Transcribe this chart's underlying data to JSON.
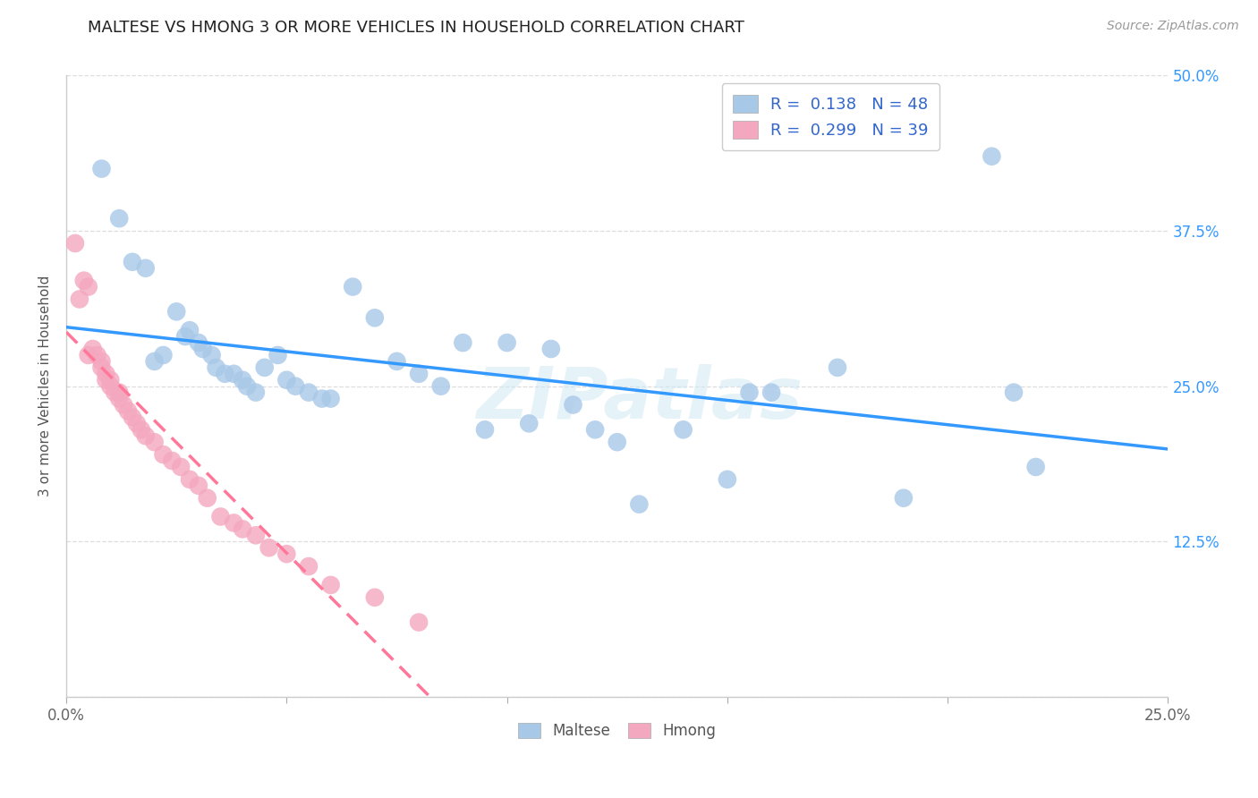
{
  "title": "MALTESE VS HMONG 3 OR MORE VEHICLES IN HOUSEHOLD CORRELATION CHART",
  "source": "Source: ZipAtlas.com",
  "ylabel": "3 or more Vehicles in Household",
  "xlim": [
    0.0,
    0.25
  ],
  "ylim": [
    0.0,
    0.5
  ],
  "xticks": [
    0.0,
    0.05,
    0.1,
    0.15,
    0.2,
    0.25
  ],
  "yticks": [
    0.0,
    0.125,
    0.25,
    0.375,
    0.5
  ],
  "xticklabels": [
    "0.0%",
    "",
    "",
    "",
    "",
    "25.0%"
  ],
  "yticklabels_right": [
    "",
    "12.5%",
    "25.0%",
    "37.5%",
    "50.0%"
  ],
  "maltese_R": 0.138,
  "maltese_N": 48,
  "hmong_R": 0.299,
  "hmong_N": 39,
  "maltese_color": "#a8c8e8",
  "hmong_color": "#f4a8c0",
  "maltese_line_color": "#3399ff",
  "hmong_line_color": "#ff7799",
  "legend_label_color": "#3366cc",
  "watermark": "ZIPatlas",
  "maltese_x": [
    0.008,
    0.012,
    0.015,
    0.018,
    0.02,
    0.022,
    0.025,
    0.027,
    0.028,
    0.03,
    0.031,
    0.033,
    0.034,
    0.036,
    0.038,
    0.04,
    0.041,
    0.043,
    0.045,
    0.048,
    0.05,
    0.052,
    0.055,
    0.058,
    0.06,
    0.065,
    0.07,
    0.075,
    0.08,
    0.085,
    0.09,
    0.095,
    0.1,
    0.105,
    0.11,
    0.115,
    0.12,
    0.125,
    0.13,
    0.14,
    0.15,
    0.155,
    0.16,
    0.175,
    0.19,
    0.21,
    0.215,
    0.22
  ],
  "maltese_y": [
    0.425,
    0.385,
    0.35,
    0.345,
    0.27,
    0.275,
    0.31,
    0.29,
    0.295,
    0.285,
    0.28,
    0.275,
    0.265,
    0.26,
    0.26,
    0.255,
    0.25,
    0.245,
    0.265,
    0.275,
    0.255,
    0.25,
    0.245,
    0.24,
    0.24,
    0.33,
    0.305,
    0.27,
    0.26,
    0.25,
    0.285,
    0.215,
    0.285,
    0.22,
    0.28,
    0.235,
    0.215,
    0.205,
    0.155,
    0.215,
    0.175,
    0.245,
    0.245,
    0.265,
    0.16,
    0.435,
    0.245,
    0.185
  ],
  "hmong_x": [
    0.002,
    0.003,
    0.004,
    0.005,
    0.005,
    0.006,
    0.007,
    0.008,
    0.008,
    0.009,
    0.009,
    0.01,
    0.01,
    0.011,
    0.012,
    0.012,
    0.013,
    0.014,
    0.015,
    0.016,
    0.017,
    0.018,
    0.02,
    0.022,
    0.024,
    0.026,
    0.028,
    0.03,
    0.032,
    0.035,
    0.038,
    0.04,
    0.043,
    0.046,
    0.05,
    0.055,
    0.06,
    0.07,
    0.08
  ],
  "hmong_y": [
    0.365,
    0.32,
    0.335,
    0.33,
    0.275,
    0.28,
    0.275,
    0.27,
    0.265,
    0.26,
    0.255,
    0.255,
    0.25,
    0.245,
    0.245,
    0.24,
    0.235,
    0.23,
    0.225,
    0.22,
    0.215,
    0.21,
    0.205,
    0.195,
    0.19,
    0.185,
    0.175,
    0.17,
    0.16,
    0.145,
    0.14,
    0.135,
    0.13,
    0.12,
    0.115,
    0.105,
    0.09,
    0.08,
    0.06
  ],
  "background_color": "#ffffff",
  "grid_color": "#dddddd"
}
